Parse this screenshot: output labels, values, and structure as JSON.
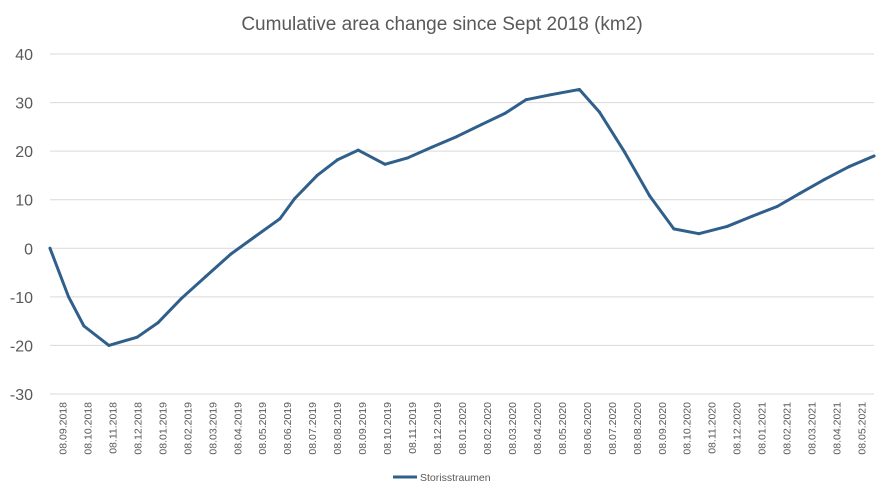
{
  "chart_data": {
    "type": "line",
    "title": "Cumulative area change since Sept 2018 (km2)",
    "xlabel": "",
    "ylabel": "",
    "ylim": [
      -30,
      40
    ],
    "yticks": [
      "40",
      "30",
      "20",
      "10",
      "0",
      "-10",
      "-20",
      "-30"
    ],
    "ytick_values": [
      40,
      30,
      20,
      10,
      0,
      -10,
      -20,
      -30
    ],
    "grid": true,
    "legend_position": "bottom",
    "categories": [
      "08.09.2018",
      "08.10.2018",
      "08.11.2018",
      "08.12.2018",
      "08.01.2019",
      "08.02.2019",
      "08.03.2019",
      "08.04.2019",
      "08.05.2019",
      "08.06.2019",
      "08.07.2019",
      "08.08.2019",
      "08.09.2019",
      "08.10.2019",
      "08.11.2019",
      "08.12.2019",
      "08.01.2020",
      "08.02.2020",
      "08.03.2020",
      "08.04.2020",
      "08.05.2020",
      "08.06.2020",
      "08.07.2020",
      "08.08.2020",
      "08.09.2020",
      "08.10.2020",
      "08.11.2020",
      "08.12.2020",
      "08.01.2021",
      "08.02.2021",
      "08.03.2021",
      "08.04.2021",
      "08.05.2021"
    ],
    "x": [
      "2018-09-08",
      "2018-10-01",
      "2018-10-20",
      "2018-11-20",
      "2018-12-25",
      "2019-01-20",
      "2019-02-18",
      "2019-03-20",
      "2019-04-20",
      "2019-05-20",
      "2019-06-20",
      "2019-07-08",
      "2019-08-05",
      "2019-08-30",
      "2019-09-25",
      "2019-10-28",
      "2019-11-25",
      "2019-12-25",
      "2020-01-25",
      "2020-02-25",
      "2020-03-25",
      "2020-04-20",
      "2020-05-20",
      "2020-06-25",
      "2020-07-20",
      "2020-08-20",
      "2020-09-20",
      "2020-10-20",
      "2020-11-20",
      "2020-12-25",
      "2021-01-25",
      "2021-02-25",
      "2021-03-25",
      "2021-04-25",
      "2021-05-25",
      "2021-06-25"
    ],
    "series": [
      {
        "name": "Storisstraumen",
        "color": "#2f5f8a",
        "values": [
          0,
          -10,
          -16,
          -20,
          -18.3,
          -15.3,
          -10.3,
          -5.8,
          -1.2,
          2.4,
          6.1,
          10.2,
          15,
          18.2,
          20.2,
          17.3,
          18.6,
          20.8,
          23,
          25.5,
          27.8,
          30.6,
          31.6,
          32.7,
          28,
          19.8,
          10.8,
          4,
          3,
          4.5,
          6.6,
          8.6,
          11.3,
          14.2,
          16.8,
          19
        ]
      }
    ]
  }
}
